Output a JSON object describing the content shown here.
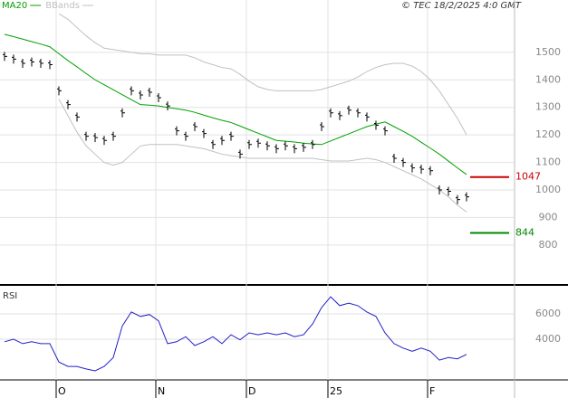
{
  "chart_data": {
    "type": "stock",
    "copyright": "© TEC 18/2/2025 4:0 GMT",
    "categories": [
      null,
      null,
      null,
      null,
      null,
      null,
      "O",
      null,
      null,
      null,
      null,
      null,
      null,
      null,
      null,
      null,
      null,
      "N",
      null,
      null,
      null,
      null,
      null,
      null,
      null,
      null,
      null,
      "D",
      null,
      null,
      null,
      null,
      null,
      null,
      null,
      null,
      "25",
      null,
      null,
      null,
      null,
      null,
      null,
      null,
      null,
      null,
      null,
      "F",
      null,
      null,
      null,
      null
    ],
    "ylim": [
      655,
      1690
    ],
    "yticks": [
      800,
      900,
      1000,
      1100,
      1200,
      1300,
      1400,
      1500
    ],
    "grid": true,
    "close_color": "#000000",
    "close": [
      1485,
      1475,
      1460,
      1465,
      1460,
      1455,
      1360,
      1310,
      1265,
      1195,
      1190,
      1180,
      1195,
      1280,
      1360,
      1345,
      1355,
      1335,
      1305,
      1215,
      1195,
      1230,
      1205,
      1165,
      1180,
      1195,
      1130,
      1165,
      1170,
      1160,
      1150,
      1160,
      1150,
      1155,
      1165,
      1230,
      1280,
      1270,
      1290,
      1280,
      1265,
      1235,
      1215,
      1115,
      1100,
      1080,
      1075,
      1070,
      1000,
      995,
      965,
      975
    ],
    "series": [
      {
        "name": "MA20",
        "color": "#00a000",
        "values": [
          1565,
          1557,
          1548,
          1539,
          1530,
          1520,
          1495,
          1470,
          1447,
          1423,
          1400,
          1382,
          1364,
          1346,
          1328,
          1310,
          1308,
          1305,
          1300,
          1295,
          1290,
          1282,
          1272,
          1262,
          1253,
          1245,
          1232,
          1219,
          1206,
          1193,
          1180,
          1177,
          1174,
          1170,
          1167,
          1165,
          1178,
          1191,
          1204,
          1217,
          1230,
          1239,
          1247,
          1230,
          1213,
          1195,
          1173,
          1152,
          1130,
          1105,
          1080,
          1056
        ]
      },
      {
        "name": "BBands",
        "color": "#c0c0c0",
        "upper": [
          null,
          null,
          null,
          null,
          null,
          null,
          1640,
          1620,
          1590,
          1560,
          1535,
          1515,
          1510,
          1505,
          1500,
          1495,
          1495,
          1490,
          1490,
          1490,
          1490,
          1480,
          1465,
          1455,
          1445,
          1440,
          1420,
          1395,
          1375,
          1365,
          1360,
          1360,
          1360,
          1360,
          1360,
          1365,
          1375,
          1385,
          1395,
          1410,
          1430,
          1445,
          1455,
          1460,
          1460,
          1450,
          1430,
          1400,
          1360,
          1310,
          1260,
          1200
        ],
        "lower": [
          null,
          null,
          null,
          null,
          null,
          null,
          1330,
          1270,
          1210,
          1160,
          1130,
          1100,
          1090,
          1100,
          1130,
          1160,
          1165,
          1165,
          1165,
          1165,
          1160,
          1155,
          1150,
          1140,
          1130,
          1125,
          1120,
          1115,
          1115,
          1115,
          1115,
          1115,
          1115,
          1115,
          1115,
          1110,
          1105,
          1105,
          1105,
          1110,
          1115,
          1110,
          1100,
          1085,
          1070,
          1055,
          1040,
          1020,
          1000,
          975,
          945,
          920
        ]
      }
    ],
    "levels": [
      {
        "value": 1047,
        "color": "#cc0000"
      },
      {
        "value": 844,
        "color": "#008800"
      }
    ],
    "rsi": {
      "title": "RSI",
      "color": "#2020c8",
      "ylim": [
        1000,
        8000
      ],
      "yticks": [
        4000,
        6000
      ],
      "values": [
        3800,
        4000,
        3650,
        3800,
        3650,
        3650,
        2200,
        1850,
        1850,
        1650,
        1500,
        1850,
        2550,
        5050,
        6150,
        5800,
        5950,
        5450,
        3650,
        3800,
        4200,
        3500,
        3800,
        4200,
        3650,
        4350,
        3950,
        4500,
        4350,
        4500,
        4350,
        4500,
        4200,
        4350,
        5200,
        6500,
        7350,
        6650,
        6850,
        6650,
        6150,
        5800,
        4500,
        3650,
        3300,
        3050,
        3300,
        3050,
        2350,
        2550,
        2450,
        2800
      ]
    }
  }
}
